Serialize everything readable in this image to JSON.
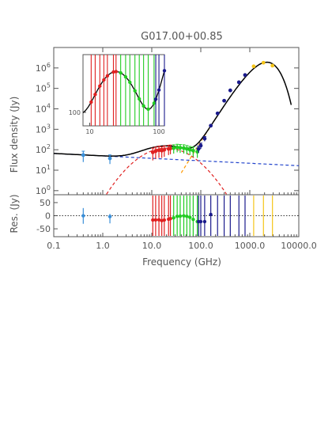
{
  "chart_data": {
    "type": "scatter",
    "title": "G017.00+00.85",
    "xlabel": "Frequency (GHz)",
    "ylabel_top": "Flux density (Jy)",
    "ylabel_bottom": "Res. (Jy)",
    "xscale": "log",
    "xlim": [
      0.1,
      10000
    ],
    "ylim_top_log10": [
      -0.2,
      7
    ],
    "ylim_bottom": [
      -80,
      80
    ],
    "x_ticks": [
      "0.1",
      "1.0",
      "10.0",
      "100.0",
      "1000.0",
      "10000.0"
    ],
    "y_ticks_top": [
      {
        "base": "10",
        "exp": "0"
      },
      {
        "base": "10",
        "exp": "1"
      },
      {
        "base": "10",
        "exp": "2"
      },
      {
        "base": "10",
        "exp": "3"
      },
      {
        "base": "10",
        "exp": "4"
      },
      {
        "base": "10",
        "exp": "5"
      },
      {
        "base": "10",
        "exp": "6"
      }
    ],
    "y_ticks_bottom": [
      "50",
      "0",
      "-50"
    ],
    "inset": {
      "xlim": [
        8,
        120
      ],
      "ylim": [
        40,
        5000
      ],
      "x_ticks": [
        "10",
        "100"
      ],
      "y_ticks": [
        "100"
      ]
    },
    "colors": {
      "lowfreq": "#3a8fd9",
      "red": "#e02020",
      "green": "#22cc22",
      "navy": "#1a1a8c",
      "yellow": "#f5c518",
      "total": "#000000",
      "synchrotron": "#2244cc",
      "freefree": "#e02020",
      "dust": "#ff9900"
    },
    "series": [
      {
        "name": "",
        "color": "lowfreq",
        "points": [
          [
            0.4,
            55,
            30
          ],
          [
            1.4,
            38,
            18
          ]
        ]
      },
      {
        "name": "",
        "color": "red",
        "points": [
          [
            10.5,
            75,
            45
          ],
          [
            12,
            85,
            50
          ],
          [
            14,
            95,
            55
          ],
          [
            16,
            90,
            50
          ],
          [
            18,
            100,
            55
          ],
          [
            22,
            110,
            55
          ],
          [
            24,
            115,
            55
          ]
        ]
      },
      {
        "name": "",
        "color": "green",
        "points": [
          [
            28,
            120,
            55
          ],
          [
            33,
            130,
            55
          ],
          [
            38,
            125,
            55
          ],
          [
            45,
            120,
            55
          ],
          [
            52,
            110,
            50
          ],
          [
            60,
            100,
            45
          ],
          [
            70,
            90,
            45
          ],
          [
            85,
            80,
            40
          ]
        ]
      },
      {
        "name": "",
        "color": "navy",
        "points": [
          [
            90,
            110,
            40
          ],
          [
            100,
            160,
            50
          ],
          [
            120,
            350,
            90
          ],
          [
            160,
            1500,
            0
          ],
          [
            220,
            6000,
            0
          ],
          [
            300,
            25000,
            0
          ],
          [
            400,
            80000,
            0
          ],
          [
            600,
            200000,
            0
          ],
          [
            800,
            450000,
            0
          ]
        ]
      },
      {
        "name": "",
        "color": "yellow",
        "points": [
          [
            1200,
            1200000,
            0
          ],
          [
            1900,
            1800000,
            0
          ],
          [
            2900,
            1300000,
            0
          ]
        ]
      }
    ],
    "model_curves": [
      "total",
      "synchrotron",
      "freefree",
      "dust"
    ]
  }
}
